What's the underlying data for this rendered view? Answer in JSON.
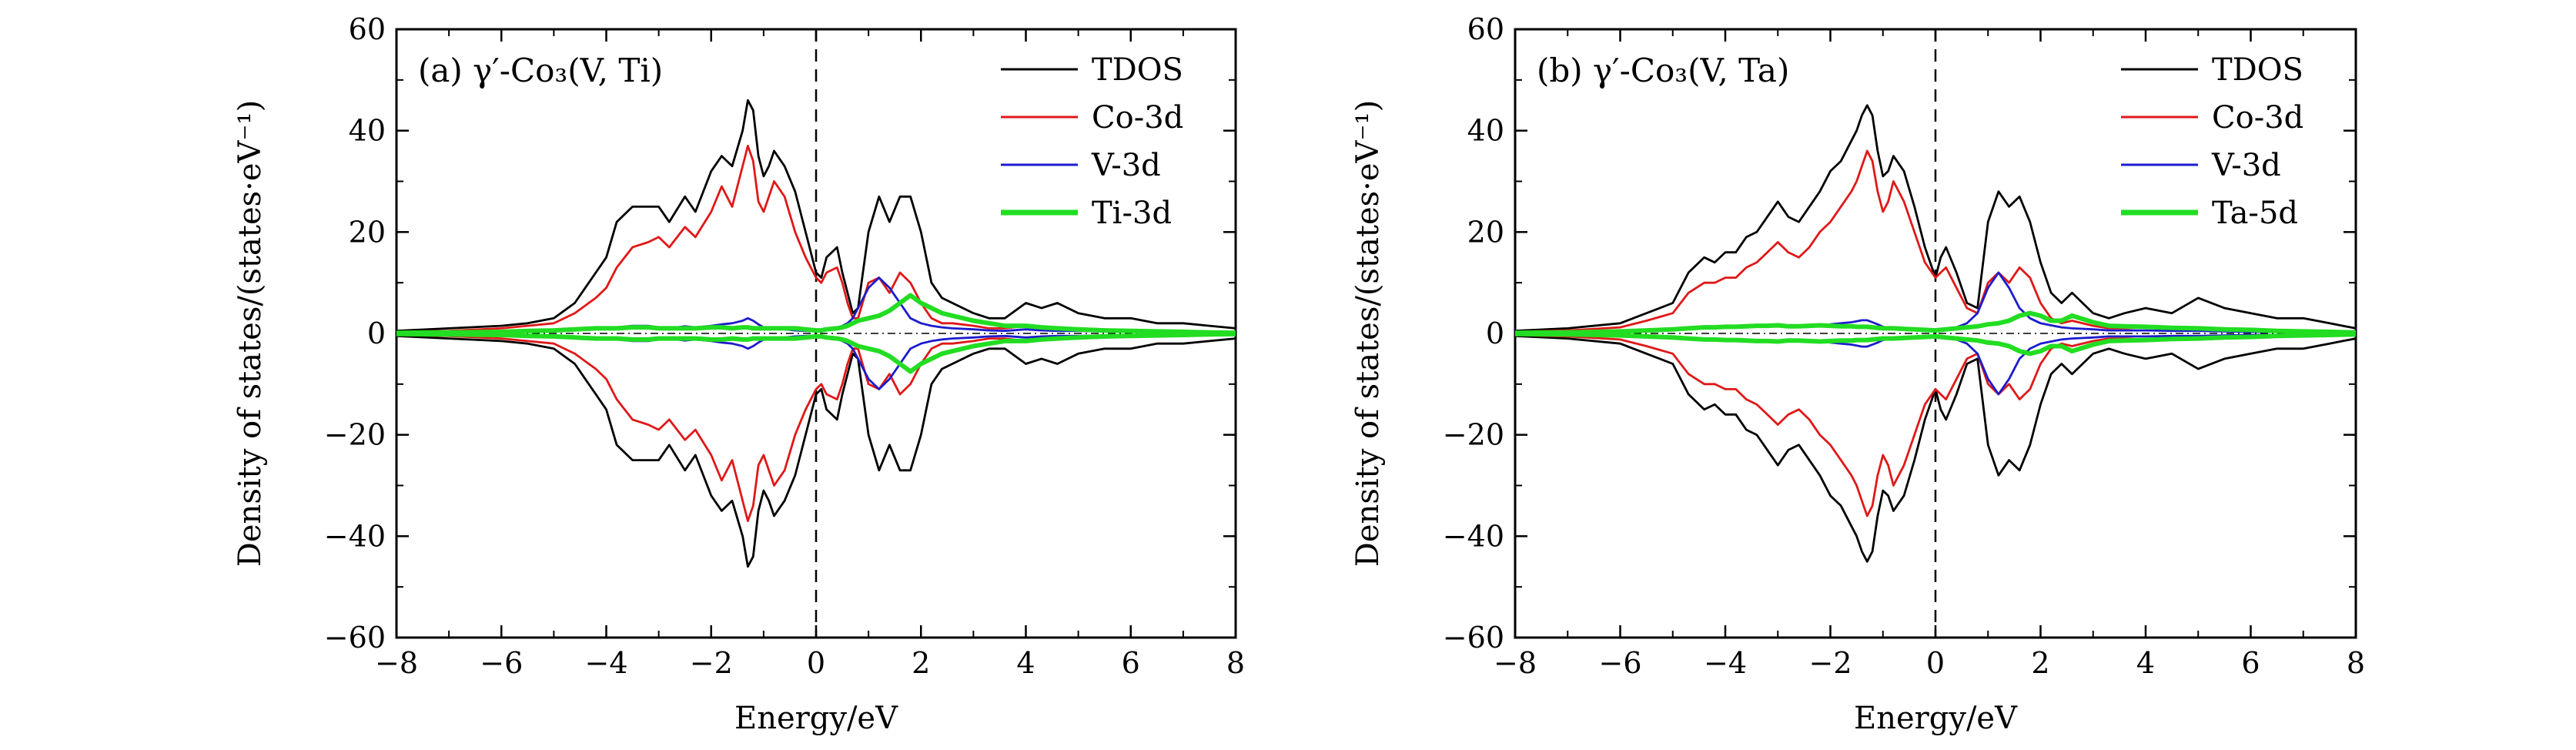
{
  "chart_data": [
    {
      "type": "line",
      "title": "(a) γ′-Co₃(V, Ti)",
      "xlabel": "Energy/eV",
      "ylabel": "Density of states/(states·eV⁻¹)",
      "xlim": [
        -8,
        8
      ],
      "ylim": [
        -60,
        60
      ],
      "xticks": [
        -8,
        -6,
        -4,
        -2,
        0,
        2,
        4,
        6,
        8
      ],
      "yticks": [
        -60,
        -40,
        -20,
        0,
        20,
        40,
        60
      ],
      "xtick_labels": [
        "−8",
        "−6",
        "−4",
        "−2",
        "0",
        "2",
        "4",
        "6",
        "8"
      ],
      "ytick_labels": [
        "−60",
        "−40",
        "−20",
        "0",
        "20",
        "40",
        "60"
      ],
      "fermi_level": 0,
      "legend_position": "top-right",
      "x": [
        -8,
        -7,
        -6,
        -5.5,
        -5,
        -4.6,
        -4.2,
        -4,
        -3.8,
        -3.5,
        -3.2,
        -3,
        -2.8,
        -2.5,
        -2.3,
        -2,
        -1.8,
        -1.6,
        -1.4,
        -1.3,
        -1.2,
        -1.1,
        -1,
        -0.9,
        -0.8,
        -0.6,
        -0.4,
        -0.2,
        0,
        0.1,
        0.2,
        0.4,
        0.5,
        0.6,
        0.7,
        0.8,
        1,
        1.2,
        1.4,
        1.6,
        1.8,
        2,
        2.2,
        2.4,
        2.6,
        3,
        3.3,
        3.6,
        4,
        4.3,
        4.6,
        5,
        5.5,
        6,
        6.5,
        7,
        7.5,
        8
      ],
      "series": [
        {
          "name": "TDOS",
          "color": "#000000",
          "spin_up": [
            0.5,
            1,
            1.5,
            2,
            3,
            6,
            12,
            15,
            22,
            25,
            25,
            25,
            22,
            27,
            24,
            32,
            35,
            33,
            40,
            46,
            44,
            35,
            31,
            33,
            36,
            33,
            28,
            20,
            12,
            11,
            15,
            17,
            12,
            8,
            4,
            5,
            20,
            27,
            22,
            27,
            27,
            20,
            10,
            7,
            6,
            4,
            3,
            3,
            6,
            5,
            6,
            4,
            3,
            3,
            2,
            2,
            1.5,
            1
          ]
        },
        {
          "name": "Co-3d",
          "color": "#e01818",
          "spin_up": [
            0.3,
            0.5,
            1,
            1.5,
            2,
            4,
            7,
            9,
            13,
            17,
            18,
            19,
            17,
            21,
            19,
            24,
            29,
            25,
            33,
            37,
            34,
            26,
            24,
            27,
            30,
            27,
            20,
            15,
            11,
            10,
            12,
            13,
            10,
            6,
            3,
            3,
            10,
            11,
            8,
            12,
            10,
            6,
            3,
            2,
            2,
            1.5,
            1,
            1,
            1.5,
            1,
            1,
            1,
            0.8,
            0.6,
            0.5,
            0.5,
            0.4,
            0.3
          ]
        },
        {
          "name": "V-3d",
          "color": "#1c1ccc",
          "spin_up": [
            0.1,
            0.2,
            0.3,
            0.4,
            0.5,
            0.6,
            0.8,
            1,
            1.2,
            1.5,
            1.5,
            1.2,
            1,
            1.4,
            1.2,
            1.5,
            1.8,
            2,
            2.5,
            3,
            2.5,
            1.8,
            1.2,
            1,
            1,
            0.8,
            0.6,
            0.5,
            0.4,
            0.5,
            0.8,
            1,
            1.5,
            2,
            3,
            5,
            9,
            11,
            9,
            6,
            3,
            2,
            1.5,
            1.2,
            1,
            0.8,
            0.6,
            0.5,
            0.8,
            0.6,
            0.5,
            0.5,
            0.4,
            0.3,
            0.3,
            0.2,
            0.2,
            0.1
          ]
        },
        {
          "name": "Ti-3d",
          "color": "#22dd22",
          "spin_up": [
            0.1,
            0.2,
            0.3,
            0.5,
            0.6,
            0.8,
            1,
            1,
            1,
            1.2,
            1.2,
            1,
            1,
            1,
            1,
            1.2,
            1.2,
            1,
            1.2,
            1.2,
            1,
            1,
            1,
            1,
            1,
            1,
            1,
            0.8,
            0.6,
            0.6,
            0.8,
            1,
            1.2,
            1.5,
            2,
            2.5,
            3,
            3.5,
            4.5,
            6,
            7.5,
            6,
            5,
            4,
            3.5,
            2.5,
            2,
            1.5,
            1.5,
            1.2,
            1,
            0.8,
            0.6,
            0.5,
            0.4,
            0.3,
            0.2,
            0.1
          ]
        }
      ]
    },
    {
      "type": "line",
      "title": "(b) γ′-Co₃(V, Ta)",
      "xlabel": "Energy/eV",
      "ylabel": "Density of states/(states·eV⁻¹)",
      "xlim": [
        -8,
        8
      ],
      "ylim": [
        -60,
        60
      ],
      "xticks": [
        -8,
        -6,
        -4,
        -2,
        0,
        2,
        4,
        6,
        8
      ],
      "yticks": [
        -60,
        -40,
        -20,
        0,
        20,
        40,
        60
      ],
      "xtick_labels": [
        "−8",
        "−6",
        "−4",
        "−2",
        "0",
        "2",
        "4",
        "6",
        "8"
      ],
      "ytick_labels": [
        "−60",
        "−40",
        "−20",
        "0",
        "20",
        "40",
        "60"
      ],
      "fermi_level": 0,
      "legend_position": "top-right",
      "x": [
        -8,
        -7,
        -6,
        -5.5,
        -5,
        -4.7,
        -4.4,
        -4.2,
        -4,
        -3.8,
        -3.6,
        -3.4,
        -3.2,
        -3,
        -2.8,
        -2.6,
        -2.4,
        -2.2,
        -2,
        -1.8,
        -1.6,
        -1.5,
        -1.4,
        -1.3,
        -1.2,
        -1.1,
        -1,
        -0.9,
        -0.8,
        -0.6,
        -0.4,
        -0.2,
        0,
        0.1,
        0.2,
        0.4,
        0.6,
        0.8,
        1,
        1.2,
        1.4,
        1.6,
        1.8,
        2,
        2.2,
        2.4,
        2.6,
        3,
        3.3,
        3.6,
        4,
        4.5,
        5,
        5.5,
        6,
        6.5,
        7,
        7.5,
        8
      ],
      "series": [
        {
          "name": "TDOS",
          "color": "#000000",
          "spin_up": [
            0.5,
            1,
            2,
            4,
            6,
            12,
            15,
            14,
            16,
            16,
            19,
            20,
            23,
            26,
            23,
            22,
            25,
            28,
            32,
            34,
            38,
            40,
            43,
            45,
            43,
            36,
            31,
            32,
            35,
            32,
            25,
            17,
            11,
            15,
            17,
            12,
            6,
            5,
            22,
            28,
            25,
            27,
            22,
            14,
            8,
            6,
            8,
            4,
            3,
            4,
            5,
            4,
            7,
            5,
            4,
            3,
            3,
            2,
            1
          ]
        },
        {
          "name": "Co-3d",
          "color": "#e01818",
          "spin_up": [
            0.3,
            0.6,
            1.2,
            2.5,
            4,
            8,
            10,
            10,
            11,
            11,
            13,
            14,
            16,
            18,
            16,
            15,
            17,
            20,
            22,
            25,
            28,
            30,
            33,
            36,
            34,
            28,
            24,
            26,
            30,
            26,
            20,
            14,
            11,
            12,
            13,
            9,
            5,
            4,
            10,
            12,
            10,
            13,
            11,
            6,
            3,
            2,
            2.5,
            1.5,
            1,
            1,
            1.2,
            1,
            1.2,
            1,
            0.8,
            0.6,
            0.5,
            0.4,
            0.3
          ]
        },
        {
          "name": "V-3d",
          "color": "#1c1ccc",
          "spin_up": [
            0.1,
            0.2,
            0.3,
            0.5,
            0.7,
            0.9,
            1,
            1,
            1.2,
            1.2,
            1.3,
            1.5,
            1.6,
            1.6,
            1.4,
            1.3,
            1.4,
            1.5,
            1.8,
            2,
            2.2,
            2.4,
            2.6,
            2.6,
            2.2,
            1.8,
            1.3,
            1.1,
            1,
            0.8,
            0.6,
            0.5,
            0.4,
            0.5,
            0.8,
            1.2,
            2,
            4,
            9,
            12,
            9,
            5,
            3,
            2,
            1.6,
            1.2,
            1,
            0.8,
            0.6,
            0.6,
            0.6,
            0.5,
            0.5,
            0.4,
            0.3,
            0.3,
            0.2,
            0.2,
            0.1
          ]
        },
        {
          "name": "Ta-5d",
          "color": "#22dd22",
          "spin_up": [
            0.1,
            0.2,
            0.4,
            0.6,
            0.8,
            1,
            1.2,
            1.2,
            1.3,
            1.3,
            1.4,
            1.5,
            1.5,
            1.6,
            1.4,
            1.4,
            1.5,
            1.6,
            1.5,
            1.4,
            1.4,
            1.3,
            1.3,
            1.3,
            1.2,
            1.1,
            1,
            1,
            1,
            0.9,
            0.8,
            0.7,
            0.6,
            0.7,
            0.8,
            1,
            1.2,
            1.4,
            1.8,
            2,
            2.5,
            3.5,
            4,
            3.5,
            2.5,
            2.5,
            3.5,
            2.2,
            1.5,
            1.4,
            1.3,
            1.1,
            1,
            0.8,
            0.7,
            0.5,
            0.4,
            0.3,
            0.2
          ]
        }
      ]
    }
  ]
}
